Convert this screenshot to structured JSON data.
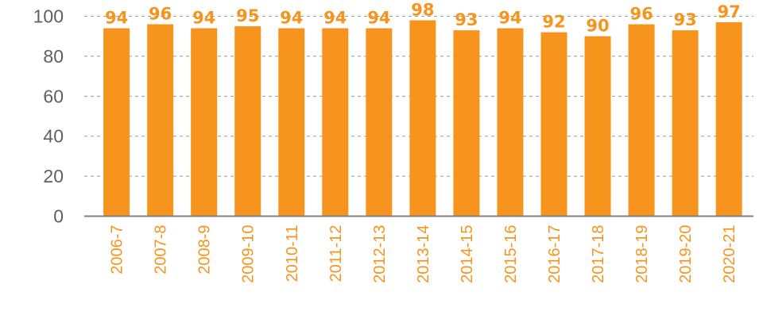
{
  "colors": {
    "bar": "#f7941d",
    "label": "#f7941d",
    "x_tick": "#f7941d",
    "y_tick": "#5f5f5f",
    "grid": "#9a9a9a",
    "axis": "#808080"
  },
  "chart_data": {
    "type": "bar",
    "categories": [
      "2006-7",
      "2007-8",
      "2008-9",
      "2009-10",
      "2010-11",
      "2011-12",
      "2012-13",
      "2013-14",
      "2014-15",
      "2015-16",
      "2016-17",
      "2017-18",
      "2018-19",
      "2019-20",
      "2020-21"
    ],
    "values": [
      94,
      96,
      94,
      95,
      94,
      94,
      94,
      98,
      93,
      94,
      92,
      90,
      96,
      93,
      97
    ],
    "y_ticks": [
      "0",
      "20",
      "40",
      "60",
      "80",
      "100"
    ],
    "ylim": [
      0,
      100
    ],
    "grid": true,
    "grid_style": "dashed",
    "data_labels": true,
    "legend": "none",
    "title": "",
    "xlabel": "",
    "ylabel": ""
  }
}
